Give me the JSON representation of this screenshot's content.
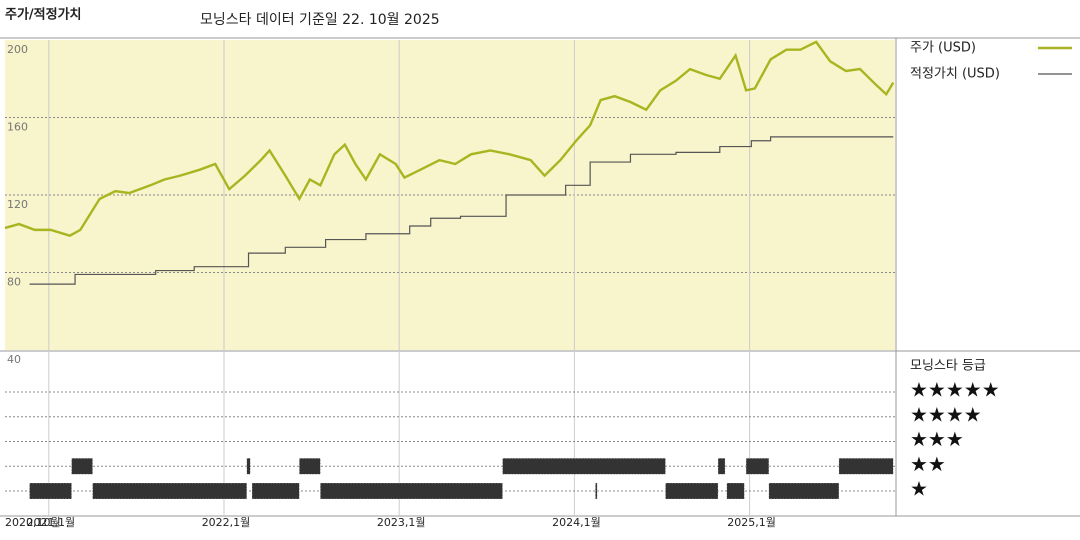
{
  "chart_data": {
    "type": "line",
    "title": "주가/적정가치",
    "subtitle": "모닝스타 데이터 기준일 22. 10월 2025",
    "xlim": [
      2020.75,
      2025.83
    ],
    "xticks": [
      {
        "value": 2020.75,
        "label": "2020,10월"
      },
      {
        "value": 2021,
        "label": "2021,1월"
      },
      {
        "value": 2022,
        "label": "2022,1월"
      },
      {
        "value": 2023,
        "label": "2023,1월"
      },
      {
        "value": 2024,
        "label": "2024,1월"
      },
      {
        "value": 2025,
        "label": "2025,1월"
      }
    ],
    "ylim": [
      40,
      200
    ],
    "yticks": [
      40,
      80,
      120,
      160,
      200
    ],
    "grid": true,
    "series": [
      {
        "name": "주가 (USD)",
        "color": "#a9b520",
        "step": false,
        "x": [
          2020.75,
          2020.83,
          2020.92,
          2021.01,
          2021.12,
          2021.18,
          2021.29,
          2021.38,
          2021.46,
          2021.58,
          2021.66,
          2021.75,
          2021.86,
          2021.95,
          2022.03,
          2022.12,
          2022.21,
          2022.26,
          2022.35,
          2022.43,
          2022.49,
          2022.55,
          2022.63,
          2022.69,
          2022.75,
          2022.81,
          2022.89,
          2022.98,
          2023.03,
          2023.12,
          2023.23,
          2023.32,
          2023.41,
          2023.52,
          2023.63,
          2023.75,
          2023.83,
          2023.92,
          2024.01,
          2024.09,
          2024.15,
          2024.23,
          2024.32,
          2024.41,
          2024.49,
          2024.58,
          2024.66,
          2024.75,
          2024.83,
          2024.92,
          2024.98,
          2025.03,
          2025.12,
          2025.21,
          2025.29,
          2025.38,
          2025.46,
          2025.55,
          2025.63,
          2025.72,
          2025.78,
          2025.82
        ],
        "values": [
          103,
          105,
          102,
          102,
          99,
          102,
          118,
          122,
          121,
          125,
          128,
          130,
          133,
          136,
          123,
          130,
          138,
          143,
          130,
          118,
          128,
          125,
          141,
          146,
          136,
          128,
          141,
          136,
          129,
          133,
          138,
          136,
          141,
          143,
          141,
          138,
          130,
          138,
          148,
          156,
          169,
          171,
          168,
          164,
          174,
          179,
          185,
          182,
          180,
          192,
          174,
          175,
          190,
          195,
          195,
          199,
          189,
          184,
          185,
          177,
          172,
          178
        ]
      },
      {
        "name": "적정가치 (USD)",
        "color": "#555555",
        "step": true,
        "x": [
          2020.89,
          2021.15,
          2021.61,
          2021.83,
          2022.14,
          2022.35,
          2022.58,
          2022.81,
          2023.06,
          2023.18,
          2023.35,
          2023.61,
          2023.95,
          2024.09,
          2024.32,
          2024.58,
          2024.83,
          2025.01,
          2025.12,
          2025.82
        ],
        "values": [
          74,
          79,
          81,
          83,
          90,
          93,
          97,
          100,
          104,
          108,
          109,
          120,
          125,
          137,
          141,
          142,
          145,
          148,
          150,
          150
        ]
      }
    ],
    "ratings": {
      "title": "모닝스타 등급",
      "row_labels": [
        "★★★★★",
        "★★★★",
        "★★★",
        "★★",
        "★"
      ],
      "row_stars": [
        5,
        4,
        3,
        2,
        1
      ],
      "start": [
        2020.89,
        2021.13,
        2021.25,
        2022.13,
        2022.16,
        2022.43,
        2022.55,
        2023.59,
        2024.12,
        2024.52,
        2024.82,
        2024.87,
        2024.98,
        2025.11,
        2025.51
      ],
      "end": [
        2021.13,
        2021.25,
        2022.13,
        2022.15,
        2022.43,
        2022.55,
        2023.59,
        2024.52,
        2024.13,
        2024.82,
        2024.86,
        2024.97,
        2025.11,
        2025.51,
        2025.82
      ],
      "stars": [
        1,
        2,
        1,
        2,
        1,
        2,
        1,
        2,
        1,
        1,
        2,
        1,
        2,
        1,
        2
      ]
    }
  }
}
